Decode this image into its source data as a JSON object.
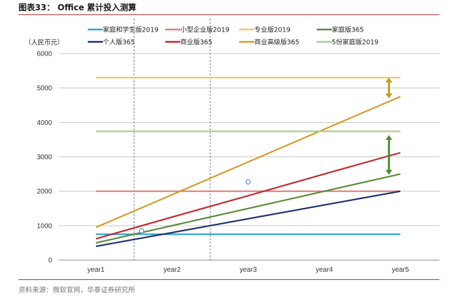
{
  "figure": {
    "title": "图表33： Office 累计投入测算",
    "source": "资料来源：微软官网，华泰证券研究所"
  },
  "chart_data": {
    "type": "line",
    "unit_label": "（人民币元）",
    "categories": [
      "year1",
      "year2",
      "year3",
      "year4",
      "year5"
    ],
    "ylim": [
      0,
      6000
    ],
    "yticks": [
      0,
      1000,
      2000,
      3000,
      4000,
      5000,
      6000
    ],
    "grid": true,
    "legend_position": "top",
    "series": [
      {
        "name": "家庭和学生版2019",
        "color": "#2ea3d6",
        "values": [
          750,
          750,
          750,
          750,
          750
        ]
      },
      {
        "name": "小型企业版2019",
        "color": "#e07b7b",
        "values": [
          2000,
          2000,
          2000,
          2000,
          2000
        ]
      },
      {
        "name": "专业版2019",
        "color": "#f2c76a",
        "values": [
          5300,
          5300,
          5300,
          5300,
          5300
        ]
      },
      {
        "name": "家庭版365",
        "color": "#5a8a3a",
        "values": [
          500,
          1000,
          1500,
          2000,
          2500
        ]
      },
      {
        "name": "个人版365",
        "color": "#1f2f6b",
        "values": [
          400,
          800,
          1200,
          1600,
          2000
        ]
      },
      {
        "name": "商业版365",
        "color": "#c0272d",
        "values": [
          620,
          1250,
          1870,
          2500,
          3120
        ]
      },
      {
        "name": "商业高级版365",
        "color": "#d69a2a",
        "values": [
          950,
          1900,
          2850,
          3800,
          4750
        ]
      },
      {
        "name": "5份家庭版2019",
        "color": "#a9cc8a",
        "values": [
          3740,
          3740,
          3740,
          3740,
          3740
        ]
      }
    ],
    "annotations": [
      {
        "type": "vertical-dashed-line",
        "at": 1.5
      },
      {
        "type": "vertical-dashed-line",
        "at": 2.5
      },
      {
        "type": "marker",
        "x": 3,
        "y": 2270
      },
      {
        "type": "marker",
        "x": 1.6,
        "y": 850
      },
      {
        "type": "double-arrow",
        "x": 4.85,
        "from": 4700,
        "to": 5300,
        "color": "#c8961e"
      },
      {
        "type": "double-arrow",
        "x": 4.85,
        "from": 2480,
        "to": 3630,
        "color": "#4f8a2c"
      }
    ]
  }
}
